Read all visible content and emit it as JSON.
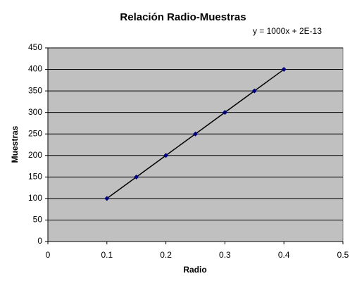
{
  "chart_data": {
    "type": "scatter",
    "title": "Relación Radio-Muestras",
    "annotation": "y = 1000x + 2E-13",
    "x_label": "Radio",
    "y_label": "Muestras",
    "series": [
      {
        "name": "Muestras",
        "color": "#000080",
        "line_color": "#000000",
        "x": [
          0.1,
          0.15,
          0.2,
          0.25,
          0.3,
          0.35,
          0.4
        ],
        "values": [
          100,
          150,
          200,
          250,
          300,
          350,
          400
        ]
      }
    ],
    "xlim": [
      0,
      0.5
    ],
    "xticks": [
      0,
      0.1,
      0.2,
      0.3,
      0.4,
      0.5
    ],
    "ylim": [
      0,
      450
    ],
    "yticks": [
      0,
      50,
      100,
      150,
      200,
      250,
      300,
      350,
      400,
      450
    ],
    "grid": true,
    "plot_background": "#c0c0c0"
  }
}
